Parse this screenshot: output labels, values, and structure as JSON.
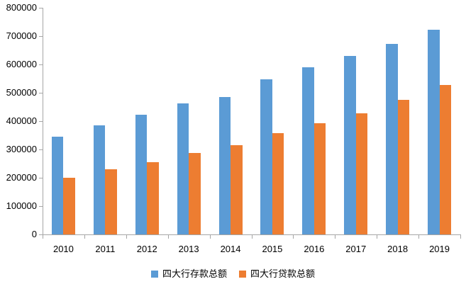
{
  "chart_data": {
    "type": "bar",
    "title": "",
    "xlabel": "",
    "ylabel": "",
    "categories": [
      "2010",
      "2011",
      "2012",
      "2013",
      "2014",
      "2015",
      "2016",
      "2017",
      "2018",
      "2019"
    ],
    "series": [
      {
        "name": "四大行存款总额",
        "color": "#5B9BD5",
        "values": [
          345000,
          386000,
          422000,
          463000,
          486000,
          547000,
          590000,
          630000,
          672000,
          722000
        ]
      },
      {
        "name": "四大行贷款总额",
        "color": "#ED7D31",
        "values": [
          201000,
          229000,
          256000,
          287000,
          316000,
          358000,
          392000,
          428000,
          474000,
          528000
        ]
      }
    ],
    "ylim": [
      0,
      800000
    ],
    "ytick_step": 100000,
    "grid": false,
    "legend_position": "bottom"
  },
  "axis": {
    "line_color": "#a6a6a6",
    "label_color": "#000000"
  }
}
